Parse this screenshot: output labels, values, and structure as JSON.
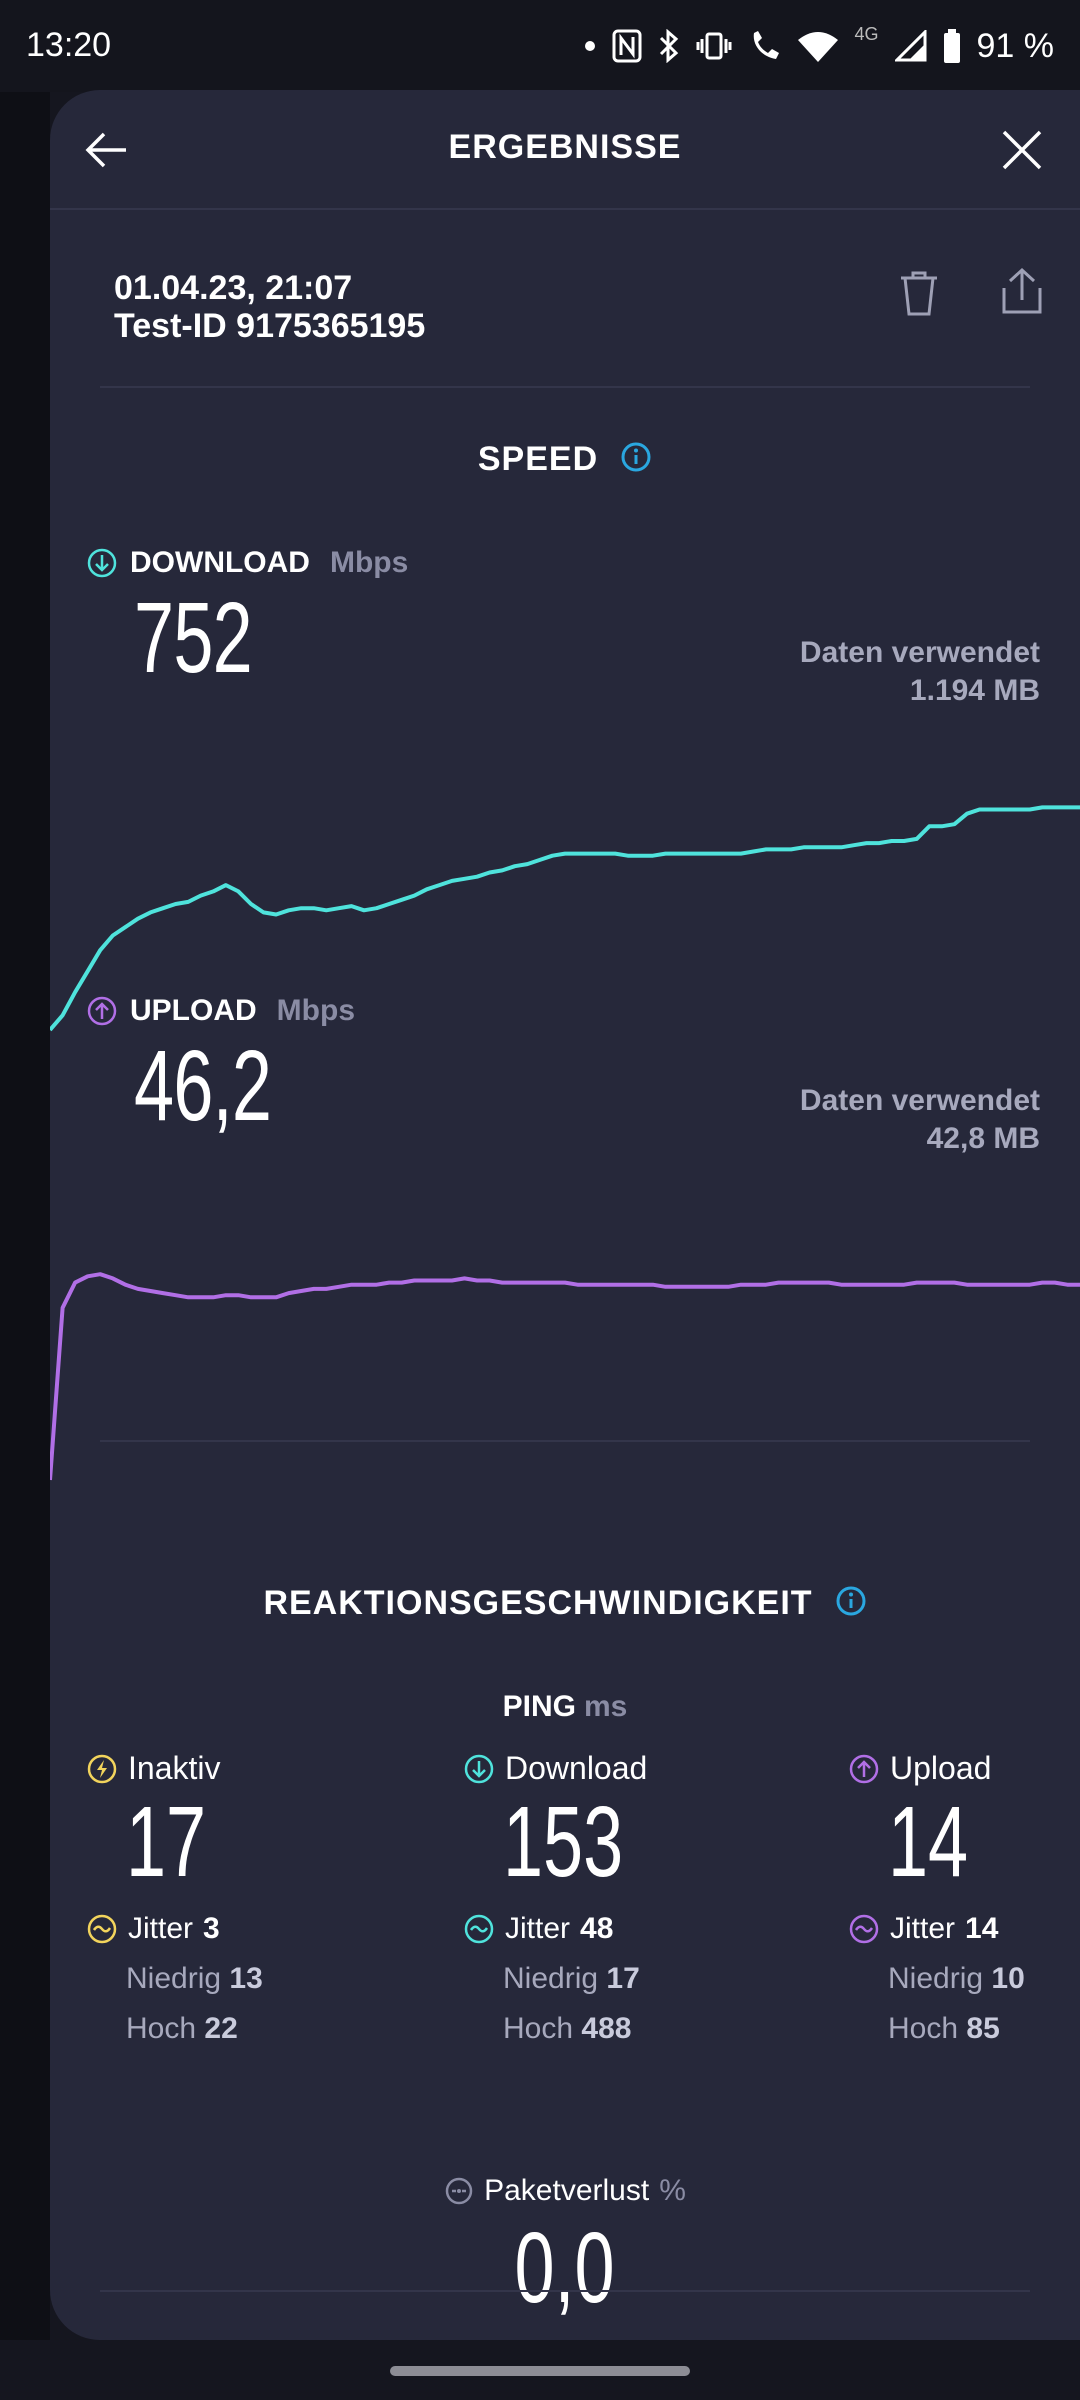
{
  "status_bar": {
    "time": "13:20",
    "network": "4G",
    "battery": "91 %"
  },
  "header": {
    "title": "ERGEBNISSE"
  },
  "test": {
    "date": "01.04.23, 21:07",
    "id": "Test-ID 9175365195"
  },
  "speed": {
    "title": "SPEED",
    "download": {
      "label": "DOWNLOAD",
      "unit": "Mbps",
      "value": "752",
      "used_label": "Daten verwendet",
      "used_value": "1.194 MB",
      "color": "#4fe3dc",
      "curve": [
        0.0,
        0.07,
        0.18,
        0.28,
        0.38,
        0.45,
        0.49,
        0.53,
        0.56,
        0.58,
        0.6,
        0.61,
        0.64,
        0.66,
        0.69,
        0.66,
        0.6,
        0.56,
        0.55,
        0.57,
        0.58,
        0.58,
        0.57,
        0.58,
        0.59,
        0.57,
        0.58,
        0.6,
        0.62,
        0.64,
        0.67,
        0.69,
        0.71,
        0.72,
        0.73,
        0.75,
        0.76,
        0.78,
        0.79,
        0.81,
        0.83,
        0.84,
        0.84,
        0.84,
        0.84,
        0.84,
        0.83,
        0.83,
        0.83,
        0.84,
        0.84,
        0.84,
        0.84,
        0.84,
        0.84,
        0.84,
        0.85,
        0.86,
        0.86,
        0.86,
        0.87,
        0.87,
        0.87,
        0.87,
        0.88,
        0.89,
        0.89,
        0.9,
        0.9,
        0.91,
        0.97,
        0.97,
        0.98,
        1.03,
        1.05,
        1.05,
        1.05,
        1.05,
        1.05,
        1.06,
        1.06,
        1.06,
        1.06
      ]
    },
    "upload": {
      "label": "UPLOAD",
      "unit": "Mbps",
      "value": "46,2",
      "used_label": "Daten verwendet",
      "used_value": "42,8 MB",
      "color": "#b16fe6",
      "curve": [
        0.0,
        0.82,
        0.94,
        0.97,
        0.98,
        0.96,
        0.93,
        0.91,
        0.9,
        0.89,
        0.88,
        0.87,
        0.87,
        0.87,
        0.88,
        0.88,
        0.87,
        0.87,
        0.87,
        0.89,
        0.9,
        0.91,
        0.91,
        0.92,
        0.93,
        0.93,
        0.93,
        0.94,
        0.94,
        0.95,
        0.95,
        0.95,
        0.95,
        0.96,
        0.95,
        0.95,
        0.94,
        0.94,
        0.94,
        0.94,
        0.94,
        0.94,
        0.93,
        0.93,
        0.93,
        0.93,
        0.93,
        0.93,
        0.93,
        0.92,
        0.92,
        0.92,
        0.92,
        0.92,
        0.92,
        0.93,
        0.93,
        0.93,
        0.94,
        0.94,
        0.94,
        0.94,
        0.94,
        0.93,
        0.93,
        0.93,
        0.93,
        0.93,
        0.93,
        0.94,
        0.94,
        0.94,
        0.94,
        0.93,
        0.93,
        0.93,
        0.93,
        0.93,
        0.93,
        0.94,
        0.94,
        0.93,
        0.93
      ]
    }
  },
  "reaction": {
    "title": "REAKTIONSGESCHWINDIGKEIT",
    "ping_label": "PING",
    "ping_unit": "ms",
    "columns": [
      {
        "label": "Inaktiv",
        "value": "17",
        "jitter_label": "Jitter",
        "jitter": "3",
        "low_label": "Niedrig",
        "low": "13",
        "high_label": "Hoch",
        "high": "22",
        "color": "#f2d45c"
      },
      {
        "label": "Download",
        "value": "153",
        "jitter_label": "Jitter",
        "jitter": "48",
        "low_label": "Niedrig",
        "low": "17",
        "high_label": "Hoch",
        "high": "488",
        "color": "#4fe3dc"
      },
      {
        "label": "Upload",
        "value": "14",
        "jitter_label": "Jitter",
        "jitter": "14",
        "low_label": "Niedrig",
        "low": "10",
        "high_label": "Hoch",
        "high": "85",
        "color": "#b16fe6"
      }
    ],
    "packet_loss": {
      "label": "Paketverlust",
      "unit": "%",
      "value": "0,0"
    }
  },
  "icons": {
    "back": "arrow-left-icon",
    "close": "close-icon",
    "trash": "trash-icon",
    "share": "share-icon",
    "info": "info-icon",
    "download": "arrow-down-circle-icon",
    "upload": "arrow-up-circle-icon",
    "idle": "lightning-circle-icon",
    "jitter": "wave-circle-icon",
    "loss": "packet-loss-icon"
  },
  "colors": {
    "accent_info": "#2aa7e0",
    "background": "#26283a"
  }
}
